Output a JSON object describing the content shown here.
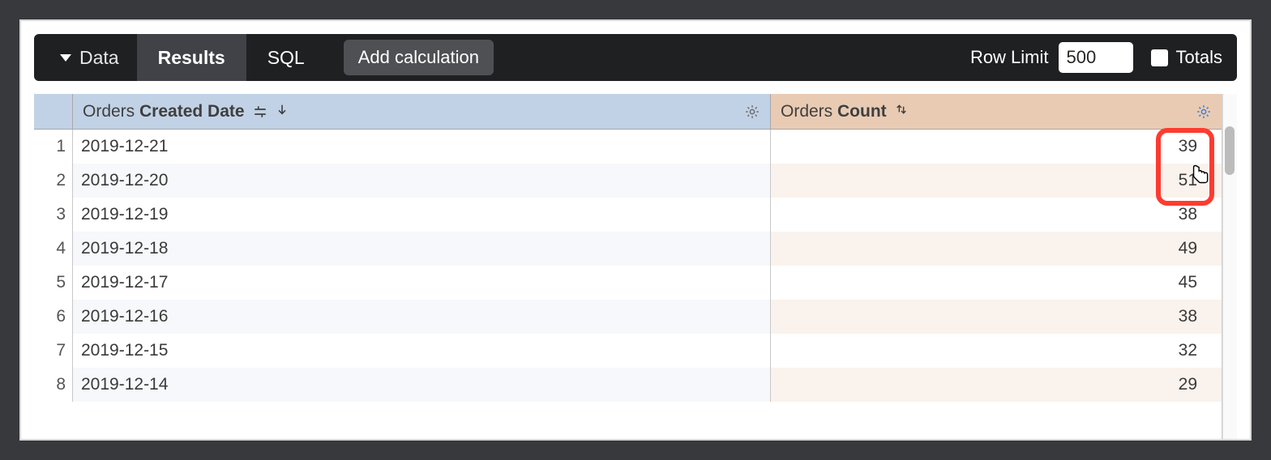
{
  "toolbar": {
    "data_label": "Data",
    "results_label": "Results",
    "sql_label": "SQL",
    "add_calc_label": "Add calculation",
    "row_limit_label": "Row Limit",
    "row_limit_value": "500",
    "totals_label": "Totals"
  },
  "table": {
    "dim_header_prefix": "Orders ",
    "dim_header_bold": "Created Date",
    "meas_header_prefix": "Orders ",
    "meas_header_bold": "Count",
    "rows": [
      {
        "n": "1",
        "date": "2019-12-21",
        "count": "39"
      },
      {
        "n": "2",
        "date": "2019-12-20",
        "count": "51"
      },
      {
        "n": "3",
        "date": "2019-12-19",
        "count": "38"
      },
      {
        "n": "4",
        "date": "2019-12-18",
        "count": "49"
      },
      {
        "n": "5",
        "date": "2019-12-17",
        "count": "45"
      },
      {
        "n": "6",
        "date": "2019-12-16",
        "count": "38"
      },
      {
        "n": "7",
        "date": "2019-12-15",
        "count": "32"
      },
      {
        "n": "8",
        "date": "2019-12-14",
        "count": "29"
      }
    ]
  },
  "colors": {
    "page_bg": "#37393c",
    "toolbar_bg": "#1f2022",
    "tab_active_bg": "#414247",
    "chip_bg": "#4f5054",
    "dim_header_bg": "#c2d2e6",
    "meas_header_bg": "#e9cbb4",
    "dim_stripe_bg": "#f6f8fb",
    "meas_stripe_bg": "#faf2ec",
    "highlight_border": "#ff3b30",
    "gear_blue": "#3b7ddd"
  }
}
